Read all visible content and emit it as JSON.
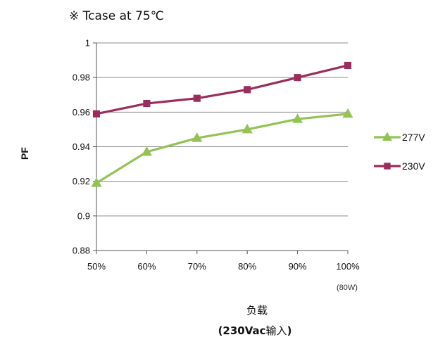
{
  "chart_data": {
    "type": "line",
    "title": "※ Tcase at 75℃",
    "ylabel": "PF",
    "xlabel_line1": "负载",
    "xlabel_line2_bold": "(230Vac",
    "xlabel_line2_normal": "输入",
    "xlabel_line2_close": ")",
    "x_note": "(80W)",
    "categories": [
      "50%",
      "60%",
      "70%",
      "80%",
      "90%",
      "100%"
    ],
    "yticks": [
      0.88,
      0.9,
      0.92,
      0.94,
      0.96,
      0.98,
      1
    ],
    "ytick_labels": [
      "0.88",
      "0.9",
      "0.92",
      "0.94",
      "0.96",
      "0.98",
      "1"
    ],
    "ylim": [
      0.88,
      1
    ],
    "grid": "horizontal",
    "legend_position": "right",
    "series": [
      {
        "name": "277V",
        "marker": "triangle",
        "color": "#92C353",
        "values": [
          0.919,
          0.937,
          0.945,
          0.95,
          0.956,
          0.959
        ]
      },
      {
        "name": "230V",
        "marker": "square",
        "color": "#9B2C5E",
        "values": [
          0.959,
          0.965,
          0.968,
          0.973,
          0.98,
          0.987
        ]
      }
    ]
  }
}
